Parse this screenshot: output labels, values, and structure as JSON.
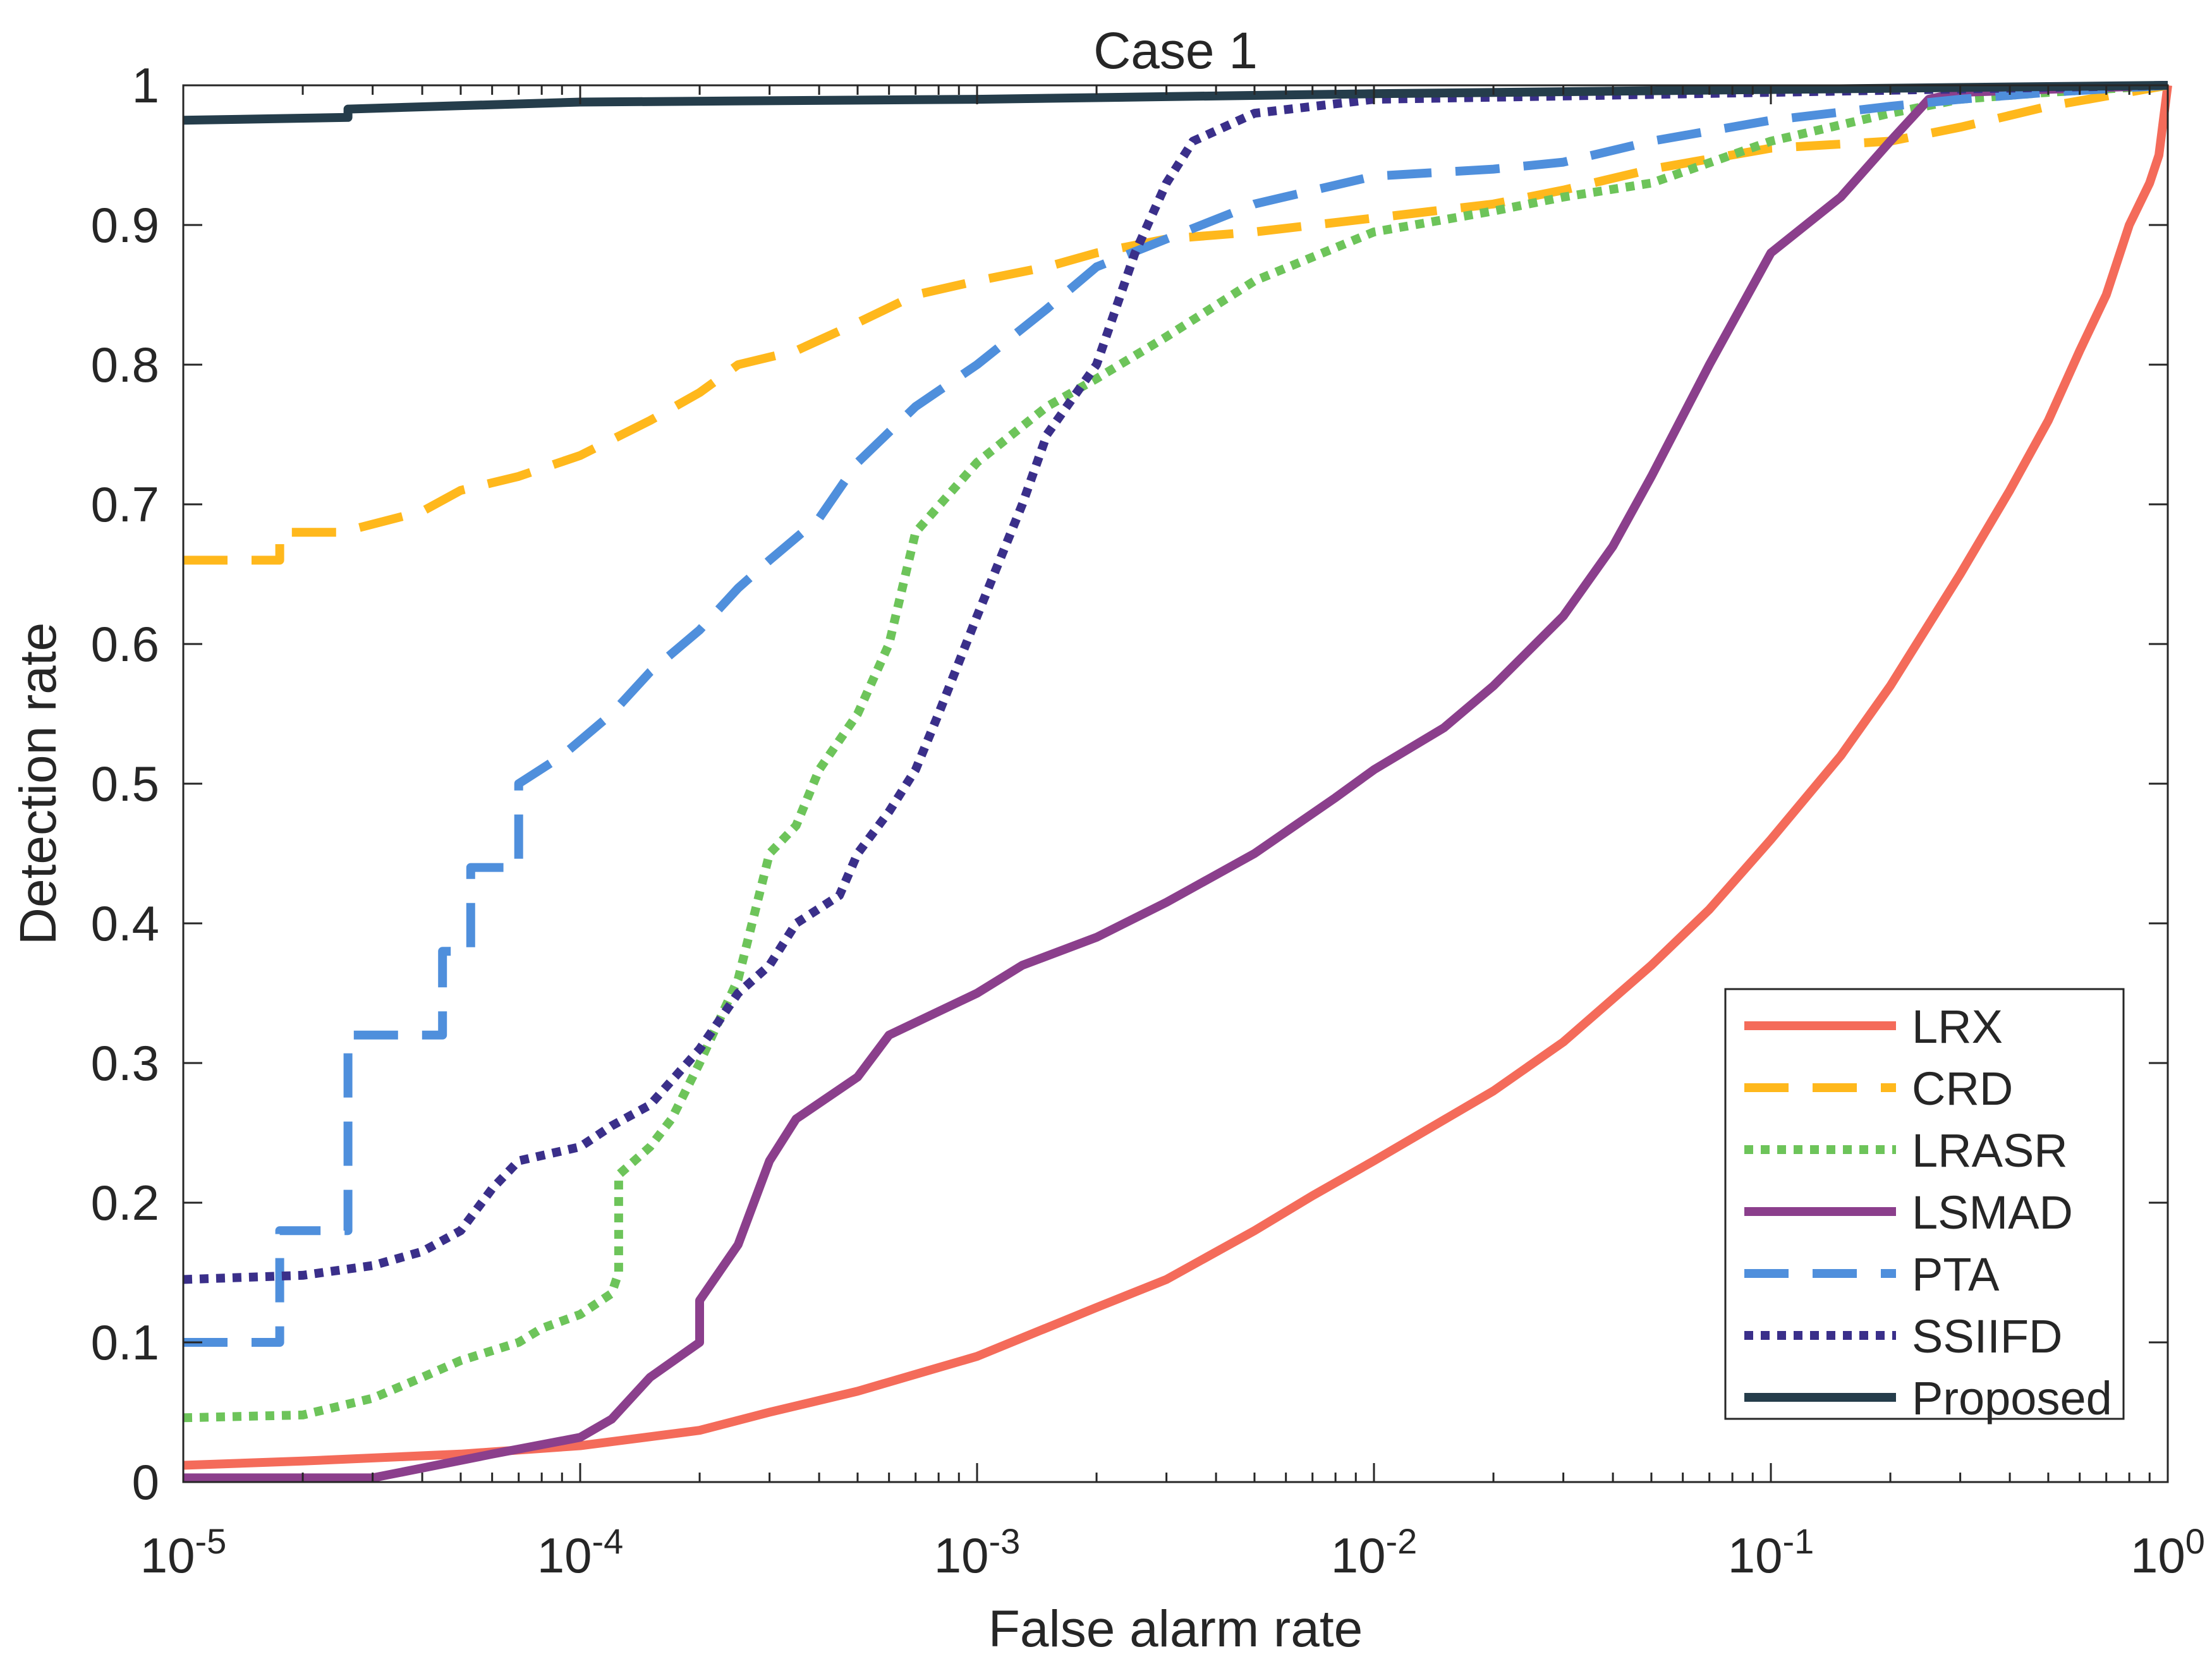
{
  "chart_data": {
    "type": "line",
    "title": "Case 1",
    "xlabel": "False alarm rate",
    "ylabel": "Detection rate",
    "xscale": "log",
    "xlim": [
      1e-05,
      1
    ],
    "ylim": [
      0,
      1
    ],
    "grid": false,
    "box": true,
    "legend_position": "bottom-right",
    "x_ticks": [
      {
        "value": 1e-05,
        "base": "10",
        "exp": "-5"
      },
      {
        "value": 0.0001,
        "base": "10",
        "exp": "-4"
      },
      {
        "value": 0.001,
        "base": "10",
        "exp": "-3"
      },
      {
        "value": 0.01,
        "base": "10",
        "exp": "-2"
      },
      {
        "value": 0.1,
        "base": "10",
        "exp": "-1"
      },
      {
        "value": 1,
        "base": "10",
        "exp": "0"
      }
    ],
    "y_ticks": [
      {
        "value": 0,
        "label": "0"
      },
      {
        "value": 0.1,
        "label": "0.1"
      },
      {
        "value": 0.2,
        "label": "0.2"
      },
      {
        "value": 0.3,
        "label": "0.3"
      },
      {
        "value": 0.4,
        "label": "0.4"
      },
      {
        "value": 0.5,
        "label": "0.5"
      },
      {
        "value": 0.6,
        "label": "0.6"
      },
      {
        "value": 0.7,
        "label": "0.7"
      },
      {
        "value": 0.8,
        "label": "0.8"
      },
      {
        "value": 0.9,
        "label": "0.9"
      },
      {
        "value": 1,
        "label": "1"
      }
    ],
    "series": [
      {
        "name": "LRX",
        "color": "#f46b5a",
        "dash": "solid",
        "points": [
          [
            1e-05,
            0.012
          ],
          [
            2e-05,
            0.015
          ],
          [
            5e-05,
            0.02
          ],
          [
            0.0001,
            0.026
          ],
          [
            0.0002,
            0.037
          ],
          [
            0.0003,
            0.05
          ],
          [
            0.0005,
            0.065
          ],
          [
            0.001,
            0.09
          ],
          [
            0.002,
            0.125
          ],
          [
            0.003,
            0.145
          ],
          [
            0.005,
            0.18
          ],
          [
            0.007,
            0.205
          ],
          [
            0.01,
            0.23
          ],
          [
            0.02,
            0.28
          ],
          [
            0.03,
            0.315
          ],
          [
            0.05,
            0.37
          ],
          [
            0.07,
            0.41
          ],
          [
            0.1,
            0.46
          ],
          [
            0.15,
            0.52
          ],
          [
            0.2,
            0.57
          ],
          [
            0.3,
            0.65
          ],
          [
            0.4,
            0.71
          ],
          [
            0.5,
            0.76
          ],
          [
            0.6,
            0.81
          ],
          [
            0.7,
            0.85
          ],
          [
            0.8,
            0.9
          ],
          [
            0.9,
            0.93
          ],
          [
            0.95,
            0.95
          ],
          [
            1,
            1
          ]
        ]
      },
      {
        "name": "CRD",
        "color": "#ffb81c",
        "dash": "dashed",
        "points": [
          [
            1e-05,
            0.66
          ],
          [
            1.75e-05,
            0.66
          ],
          [
            1.75e-05,
            0.68
          ],
          [
            2.5e-05,
            0.68
          ],
          [
            4e-05,
            0.695
          ],
          [
            5e-05,
            0.71
          ],
          [
            7e-05,
            0.72
          ],
          [
            0.0001,
            0.735
          ],
          [
            0.00015,
            0.76
          ],
          [
            0.0002,
            0.78
          ],
          [
            0.00025,
            0.8
          ],
          [
            0.00035,
            0.81
          ],
          [
            0.0005,
            0.83
          ],
          [
            0.0007,
            0.85
          ],
          [
            0.001,
            0.86
          ],
          [
            0.0015,
            0.87
          ],
          [
            0.002,
            0.88
          ],
          [
            0.003,
            0.89
          ],
          [
            0.005,
            0.895
          ],
          [
            0.01,
            0.905
          ],
          [
            0.02,
            0.915
          ],
          [
            0.03,
            0.925
          ],
          [
            0.05,
            0.94
          ],
          [
            0.1,
            0.955
          ],
          [
            0.2,
            0.96
          ],
          [
            0.3,
            0.97
          ],
          [
            0.5,
            0.985
          ],
          [
            1,
            1
          ]
        ]
      },
      {
        "name": "LRASR",
        "color": "#6dc45a",
        "dash": "dotted",
        "points": [
          [
            1e-05,
            0.046
          ],
          [
            2e-05,
            0.048
          ],
          [
            3e-05,
            0.06
          ],
          [
            4e-05,
            0.075
          ],
          [
            5e-05,
            0.087
          ],
          [
            7e-05,
            0.1
          ],
          [
            8e-05,
            0.11
          ],
          [
            0.0001,
            0.12
          ],
          [
            0.00012,
            0.135
          ],
          [
            0.000125,
            0.15
          ],
          [
            0.000125,
            0.22
          ],
          [
            0.00015,
            0.24
          ],
          [
            0.00017,
            0.26
          ],
          [
            0.0002,
            0.3
          ],
          [
            0.00025,
            0.36
          ],
          [
            0.0003,
            0.45
          ],
          [
            0.00035,
            0.47
          ],
          [
            0.0004,
            0.51
          ],
          [
            0.0005,
            0.55
          ],
          [
            0.0006,
            0.6
          ],
          [
            0.0007,
            0.68
          ],
          [
            0.001,
            0.73
          ],
          [
            0.0015,
            0.77
          ],
          [
            0.002,
            0.79
          ],
          [
            0.003,
            0.82
          ],
          [
            0.005,
            0.86
          ],
          [
            0.01,
            0.895
          ],
          [
            0.02,
            0.91
          ],
          [
            0.03,
            0.92
          ],
          [
            0.05,
            0.93
          ],
          [
            0.1,
            0.96
          ],
          [
            0.2,
            0.98
          ],
          [
            0.3,
            0.99
          ],
          [
            0.5,
            0.995
          ],
          [
            1,
            1
          ]
        ]
      },
      {
        "name": "LSMAD",
        "color": "#8b3f8c",
        "dash": "solid",
        "points": [
          [
            1e-05,
            0.003
          ],
          [
            3e-05,
            0.003
          ],
          [
            4e-05,
            0.01
          ],
          [
            6e-05,
            0.02
          ],
          [
            0.0001,
            0.032
          ],
          [
            0.00012,
            0.045
          ],
          [
            0.00015,
            0.075
          ],
          [
            0.0002,
            0.1
          ],
          [
            0.0002,
            0.13
          ],
          [
            0.00025,
            0.17
          ],
          [
            0.0003,
            0.23
          ],
          [
            0.00035,
            0.26
          ],
          [
            0.0005,
            0.29
          ],
          [
            0.0006,
            0.32
          ],
          [
            0.001,
            0.35
          ],
          [
            0.0013,
            0.37
          ],
          [
            0.002,
            0.39
          ],
          [
            0.003,
            0.415
          ],
          [
            0.005,
            0.45
          ],
          [
            0.008,
            0.49
          ],
          [
            0.01,
            0.51
          ],
          [
            0.015,
            0.54
          ],
          [
            0.02,
            0.57
          ],
          [
            0.03,
            0.62
          ],
          [
            0.04,
            0.67
          ],
          [
            0.05,
            0.72
          ],
          [
            0.07,
            0.8
          ],
          [
            0.1,
            0.88
          ],
          [
            0.15,
            0.92
          ],
          [
            0.2,
            0.96
          ],
          [
            0.25,
            0.99
          ],
          [
            0.3,
            0.995
          ],
          [
            1,
            1
          ]
        ]
      },
      {
        "name": "PTA",
        "color": "#4f8fdc",
        "dash": "dashed",
        "points": [
          [
            1e-05,
            0.1
          ],
          [
            1.75e-05,
            0.1
          ],
          [
            1.75e-05,
            0.18
          ],
          [
            2.6e-05,
            0.18
          ],
          [
            2.6e-05,
            0.32
          ],
          [
            4.5e-05,
            0.32
          ],
          [
            4.5e-05,
            0.38
          ],
          [
            5.3e-05,
            0.38
          ],
          [
            5.3e-05,
            0.44
          ],
          [
            7e-05,
            0.44
          ],
          [
            7e-05,
            0.5
          ],
          [
            9e-05,
            0.52
          ],
          [
            0.00012,
            0.55
          ],
          [
            0.00015,
            0.58
          ],
          [
            0.0002,
            0.61
          ],
          [
            0.00025,
            0.64
          ],
          [
            0.0003,
            0.66
          ],
          [
            0.0004,
            0.69
          ],
          [
            0.0005,
            0.73
          ],
          [
            0.0007,
            0.77
          ],
          [
            0.001,
            0.8
          ],
          [
            0.0015,
            0.84
          ],
          [
            0.002,
            0.87
          ],
          [
            0.003,
            0.89
          ],
          [
            0.005,
            0.915
          ],
          [
            0.01,
            0.935
          ],
          [
            0.02,
            0.94
          ],
          [
            0.03,
            0.945
          ],
          [
            0.05,
            0.96
          ],
          [
            0.1,
            0.975
          ],
          [
            0.2,
            0.985
          ],
          [
            0.3,
            0.99
          ],
          [
            0.5,
            0.995
          ],
          [
            1,
            1
          ]
        ]
      },
      {
        "name": "SSIIFD",
        "color": "#3a2f8a",
        "dash": "dotted",
        "points": [
          [
            1e-05,
            0.145
          ],
          [
            2e-05,
            0.148
          ],
          [
            3e-05,
            0.155
          ],
          [
            4e-05,
            0.165
          ],
          [
            5e-05,
            0.18
          ],
          [
            6e-05,
            0.21
          ],
          [
            7e-05,
            0.23
          ],
          [
            0.0001,
            0.24
          ],
          [
            0.00012,
            0.255
          ],
          [
            0.00015,
            0.27
          ],
          [
            0.0002,
            0.31
          ],
          [
            0.00025,
            0.35
          ],
          [
            0.0003,
            0.37
          ],
          [
            0.00035,
            0.4
          ],
          [
            0.00045,
            0.42
          ],
          [
            0.0005,
            0.45
          ],
          [
            0.0006,
            0.48
          ],
          [
            0.0007,
            0.51
          ],
          [
            0.0008,
            0.55
          ],
          [
            0.001,
            0.62
          ],
          [
            0.0013,
            0.7
          ],
          [
            0.0015,
            0.75
          ],
          [
            0.002,
            0.8
          ],
          [
            0.0025,
            0.88
          ],
          [
            0.003,
            0.93
          ],
          [
            0.0035,
            0.96
          ],
          [
            0.005,
            0.98
          ],
          [
            0.01,
            0.99
          ],
          [
            0.1,
            0.995
          ],
          [
            1,
            1
          ]
        ]
      },
      {
        "name": "Proposed",
        "color": "#253d4b",
        "dash": "solid",
        "points": [
          [
            1e-05,
            0.975
          ],
          [
            2.6e-05,
            0.977
          ],
          [
            2.6e-05,
            0.983
          ],
          [
            0.0001,
            0.988
          ],
          [
            0.001,
            0.99
          ],
          [
            0.01,
            0.994
          ],
          [
            0.1,
            0.997
          ],
          [
            1,
            1
          ]
        ]
      }
    ]
  }
}
